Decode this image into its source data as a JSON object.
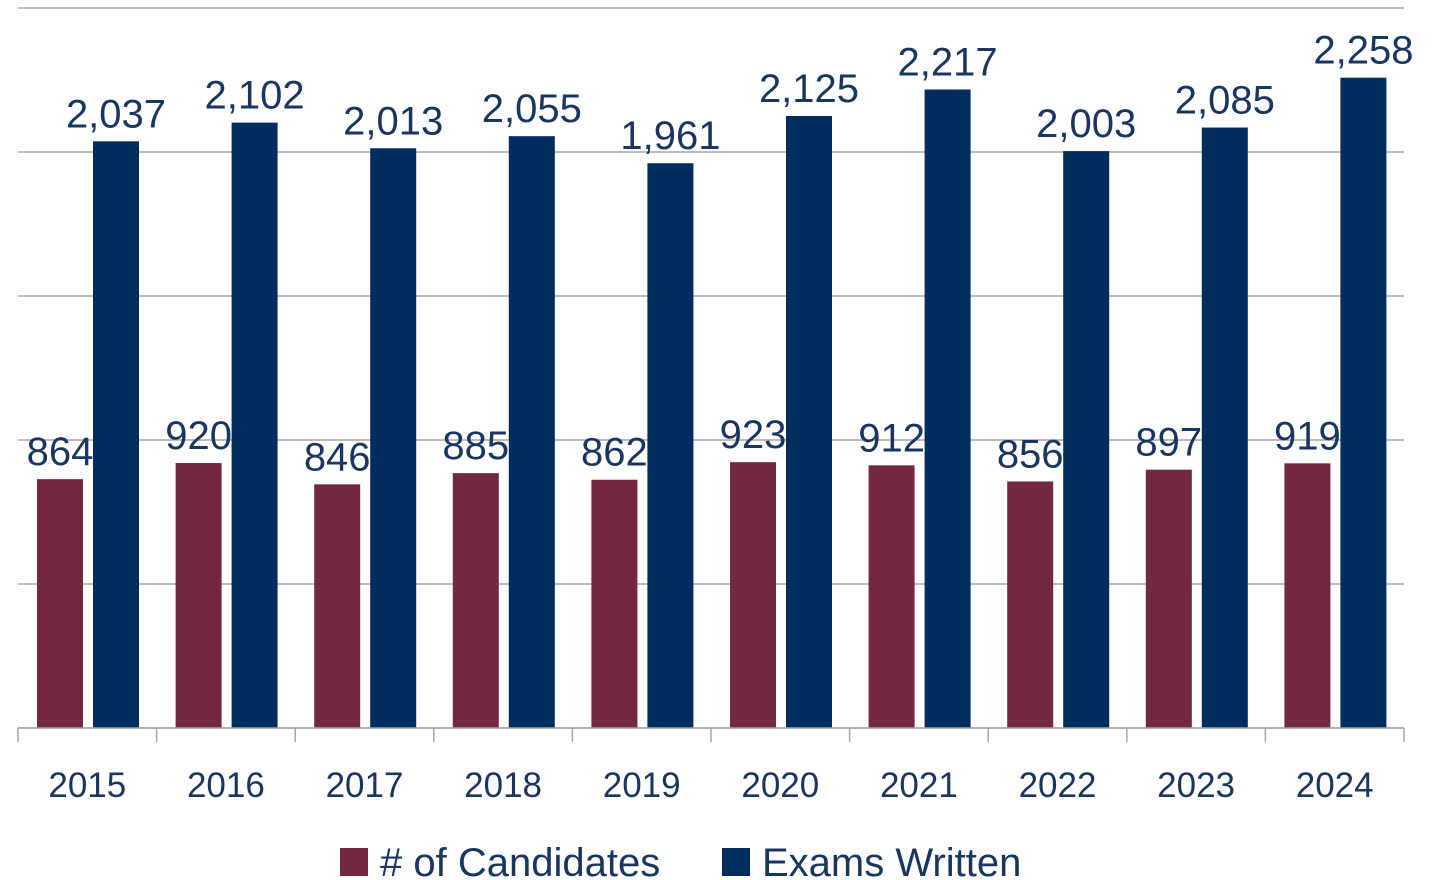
{
  "chart_data": {
    "type": "bar",
    "categories": [
      "2015",
      "2016",
      "2017",
      "2018",
      "2019",
      "2020",
      "2021",
      "2022",
      "2023",
      "2024"
    ],
    "series": [
      {
        "name": "# of Candidates",
        "color": "#722840",
        "values": [
          864,
          920,
          846,
          885,
          862,
          923,
          912,
          856,
          897,
          919
        ]
      },
      {
        "name": "Exams Written",
        "color": "#002d5e",
        "values": [
          2037,
          2102,
          2013,
          2055,
          1961,
          2125,
          2217,
          2003,
          2085,
          2258
        ],
        "value_labels": [
          "2,037",
          "2,102",
          "2,013",
          "2,055",
          "1,961",
          "2,125",
          "2,217",
          "2,003",
          "2,085",
          "2,258"
        ]
      }
    ],
    "ylim": [
      0,
      2500
    ],
    "yticks": [
      0,
      500,
      1000,
      1500,
      2000,
      2500
    ],
    "grid": true,
    "legend": "bottom"
  }
}
